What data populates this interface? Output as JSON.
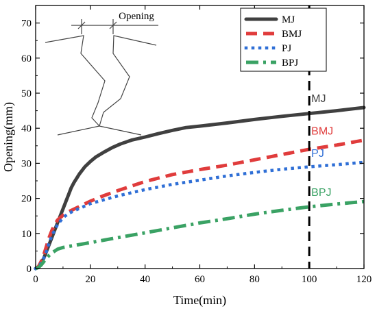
{
  "chart_data": {
    "type": "line",
    "xlabel": "Time(min)",
    "ylabel": "Opening(mm)",
    "xlim": [
      0,
      120
    ],
    "ylim": [
      0,
      75
    ],
    "xticks": [
      0,
      20,
      40,
      60,
      80,
      100,
      120
    ],
    "yticks": [
      0,
      10,
      20,
      30,
      40,
      50,
      60,
      70
    ],
    "grid": false,
    "legend_position": "top-right",
    "reference_line": {
      "x": 100,
      "style": "dashed",
      "color": "#000000"
    },
    "inset_label": "Opening",
    "series": [
      {
        "name": "MJ",
        "color": "#404040",
        "style": "solid",
        "x": [
          0,
          1,
          2,
          3,
          4,
          5,
          6,
          7,
          8,
          9,
          10,
          11,
          12,
          13,
          14,
          16,
          18,
          20,
          22,
          25,
          28,
          31,
          35,
          40,
          45,
          50,
          55,
          60,
          70,
          80,
          90,
          100,
          110,
          120
        ],
        "y": [
          0,
          0.5,
          1.5,
          3,
          5,
          7,
          9,
          11,
          13,
          15,
          17,
          19,
          21,
          23,
          24.5,
          27,
          29,
          30.5,
          31.8,
          33.2,
          34.5,
          35.5,
          36.6,
          37.5,
          38.5,
          39.4,
          40.2,
          40.6,
          41.5,
          42.5,
          43.4,
          44.2,
          45,
          45.9
        ],
        "inline_label": "MJ",
        "label_color": "#404040"
      },
      {
        "name": "BMJ",
        "color": "#e03c3c",
        "style": "dashed",
        "x": [
          0,
          1,
          2,
          3,
          4,
          5,
          6,
          7,
          8,
          10,
          12,
          15,
          20,
          25,
          30,
          40,
          50,
          60,
          70,
          80,
          90,
          100,
          110,
          120
        ],
        "y": [
          0,
          0.5,
          2,
          4,
          6.5,
          9,
          11,
          12.5,
          13.8,
          15.2,
          16.2,
          17.3,
          19.2,
          20.8,
          22.2,
          24.8,
          26.8,
          28.2,
          29.5,
          31,
          32.5,
          34,
          35.2,
          36.6
        ],
        "inline_label": "BMJ",
        "label_color": "#e03c3c"
      },
      {
        "name": "PJ",
        "color": "#2f6fd6",
        "style": "dotted",
        "x": [
          0,
          1,
          2,
          3,
          4,
          5,
          6,
          7,
          8,
          10,
          12,
          15,
          20,
          25,
          30,
          40,
          50,
          60,
          70,
          80,
          90,
          100,
          110,
          120
        ],
        "y": [
          0,
          0.5,
          1.5,
          3,
          5,
          7.5,
          9.5,
          11,
          12.5,
          14.5,
          15.7,
          16.8,
          18.5,
          19.6,
          20.7,
          22.5,
          24,
          25.2,
          26.4,
          27.4,
          28.3,
          29,
          29.6,
          30.3
        ],
        "inline_label": "PJ",
        "label_color": "#2f6fd6"
      },
      {
        "name": "BPJ",
        "color": "#3aa264",
        "style": "dashdot",
        "x": [
          0,
          1,
          2,
          3,
          4,
          5,
          6,
          7,
          8,
          10,
          12,
          15,
          20,
          25,
          30,
          40,
          50,
          60,
          70,
          80,
          90,
          100,
          110,
          120
        ],
        "y": [
          0,
          0.3,
          1,
          2,
          3,
          3.8,
          4.5,
          5,
          5.5,
          6,
          6.3,
          6.7,
          7.4,
          8.1,
          8.8,
          10.2,
          11.6,
          13,
          14.2,
          15.5,
          16.6,
          17.6,
          18.4,
          19.1
        ],
        "inline_label": "BPJ",
        "label_color": "#3aa264"
      }
    ]
  }
}
